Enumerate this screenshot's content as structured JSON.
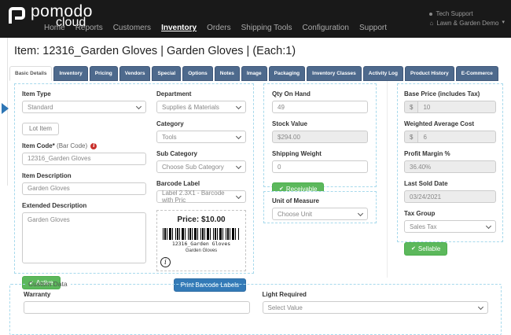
{
  "nav": {
    "brand_top": "pomodo",
    "brand_bottom": "cloud",
    "items": [
      {
        "label": "Home",
        "active": false
      },
      {
        "label": "Reports",
        "active": false
      },
      {
        "label": "Customers",
        "active": false
      },
      {
        "label": "Inventory",
        "active": true
      },
      {
        "label": "Orders",
        "active": false
      },
      {
        "label": "Shipping Tools",
        "active": false
      },
      {
        "label": "Configuration",
        "active": false
      },
      {
        "label": "Support",
        "active": false
      }
    ],
    "user": {
      "line1": "Tech Support",
      "line2": "Lawn & Garden Demo",
      "caret": "▾"
    }
  },
  "page": {
    "title": "Item: 12316_Garden Gloves | Garden Gloves | (Each:1)"
  },
  "tabs": [
    {
      "label": "Basic Details",
      "active": true
    },
    {
      "label": "Inventory",
      "active": false
    },
    {
      "label": "Pricing",
      "active": false
    },
    {
      "label": "Vendors",
      "active": false
    },
    {
      "label": "Special",
      "active": false
    },
    {
      "label": "Options",
      "active": false
    },
    {
      "label": "Notes",
      "active": false
    },
    {
      "label": "Image",
      "active": false
    },
    {
      "label": "Packaging",
      "active": false
    },
    {
      "label": "Inventory Classes",
      "active": false
    },
    {
      "label": "Activity Log",
      "active": false
    },
    {
      "label": "Product History",
      "active": false
    },
    {
      "label": "E-Commerce",
      "active": false
    }
  ],
  "form": {
    "item_type": {
      "label": "Item Type",
      "value": "Standard"
    },
    "lot_item_button": "Lot Item",
    "item_code": {
      "label": "Item Code*",
      "suffix": "(Bar Code)",
      "value": "12316_Garden Gloves"
    },
    "item_description": {
      "label": "Item Description",
      "value": "Garden Gloves"
    },
    "extended_description": {
      "label": "Extended Description",
      "value": "Garden Gloves"
    },
    "active_button": "Active",
    "department": {
      "label": "Department",
      "value": "Supplies & Materials"
    },
    "category": {
      "label": "Category",
      "value": "Tools"
    },
    "sub_category": {
      "label": "Sub Category",
      "value": "Choose Sub Category"
    },
    "barcode_label": {
      "label": "Barcode Label",
      "value": "Label 2.3X1 - Barcode with Pric"
    },
    "barcode_preview": {
      "price": "Price: $10.00",
      "code_text": "12316_Garden Gloves",
      "desc_text": "Garden Gloves",
      "info_glyph": "i"
    },
    "print_barcode_button": "Print Barcode Labels",
    "qty_on_hand": {
      "label": "Qty On Hand",
      "value": "49"
    },
    "stock_value": {
      "label": "Stock Value",
      "value": "$294.00"
    },
    "shipping_weight": {
      "label": "Shipping Weight",
      "value": "0"
    },
    "receivable_button": "Receivable",
    "unit_of_measure": {
      "label": "Unit of Measure",
      "value": "Choose Unit"
    },
    "base_price": {
      "label": "Base Price (includes Tax)",
      "prefix": "$",
      "value": "10"
    },
    "weighted_avg_cost": {
      "label": "Weighted Average Cost",
      "prefix": "$",
      "value": "6"
    },
    "profit_margin": {
      "label": "Profit Margin %",
      "value": "36.40%"
    },
    "last_sold_date": {
      "label": "Last Sold Date",
      "value": "03/24/2021"
    },
    "tax_group": {
      "label": "Tax Group",
      "value": "Sales Tax"
    },
    "sellable_button": "Sellable"
  },
  "custom_data": {
    "legend": "Custom Data",
    "warranty": {
      "label": "Warranty",
      "value": ""
    },
    "light_required": {
      "label": "Light Required",
      "value": "Select Value"
    }
  },
  "icons": {
    "check": "✔",
    "required_badge": "i",
    "home": "⌂"
  },
  "colors": {
    "nav_bg": "#191919",
    "tab_bg": "#4e6a8d",
    "accent_green": "#5cb85c",
    "accent_blue": "#337ab7",
    "dashed_border": "#a7d9ec"
  }
}
